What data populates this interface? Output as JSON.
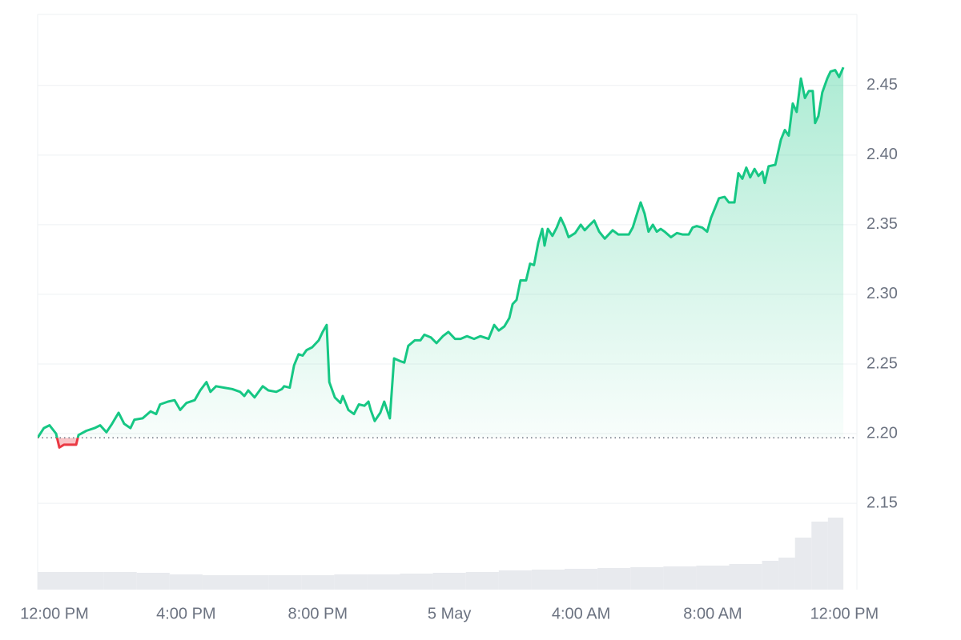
{
  "chart_data": {
    "type": "line",
    "x": [
      -0.51,
      -0.32,
      -0.15,
      0.05,
      0.15,
      0.29,
      0.49,
      0.66,
      0.73,
      0.97,
      1.22,
      1.39,
      1.58,
      1.75,
      1.95,
      2.12,
      2.31,
      2.43,
      2.68,
      2.92,
      3.09,
      3.21,
      3.45,
      3.65,
      3.82,
      4.01,
      4.26,
      4.43,
      4.62,
      4.74,
      4.91,
      5.16,
      5.4,
      5.64,
      5.77,
      5.89,
      6.08,
      6.33,
      6.5,
      6.74,
      6.91,
      6.98,
      7.15,
      7.28,
      7.42,
      7.54,
      7.66,
      7.83,
      8.03,
      8.15,
      8.27,
      8.35,
      8.52,
      8.69,
      8.76,
      8.93,
      9.1,
      9.25,
      9.42,
      9.54,
      9.61,
      9.73,
      9.9,
      10.02,
      10.19,
      10.32,
      10.51,
      10.63,
      10.75,
      10.95,
      11.12,
      11.24,
      11.44,
      11.61,
      11.8,
      11.97,
      12.17,
      12.34,
      12.53,
      12.75,
      12.94,
      13.19,
      13.36,
      13.5,
      13.67,
      13.82,
      13.92,
      14.04,
      14.16,
      14.33,
      14.45,
      14.57,
      14.7,
      14.82,
      14.89,
      14.99,
      15.13,
      15.26,
      15.38,
      15.5,
      15.62,
      15.82,
      15.99,
      16.11,
      16.23,
      16.4,
      16.55,
      16.72,
      16.96,
      17.13,
      17.45,
      17.57,
      17.69,
      17.81,
      17.93,
      18.05,
      18.18,
      18.3,
      18.42,
      18.54,
      18.73,
      18.91,
      19.08,
      19.27,
      19.39,
      19.51,
      19.68,
      19.83,
      19.95,
      20.07,
      20.19,
      20.36,
      20.49,
      20.66,
      20.78,
      20.9,
      21.02,
      21.14,
      21.27,
      21.39,
      21.51,
      21.58,
      21.7,
      21.9,
      22.07,
      22.19,
      22.31,
      22.43,
      22.55,
      22.68,
      22.8,
      22.92,
      23.04,
      23.11,
      23.21,
      23.33,
      23.48,
      23.58,
      23.72,
      23.84,
      23.97
    ],
    "series": [
      {
        "color": "#16c784",
        "below_color": "#ea3943",
        "values": [
          2.197,
          2.204,
          2.206,
          2.2,
          2.19,
          2.192,
          2.192,
          2.192,
          2.199,
          2.202,
          2.204,
          2.206,
          2.201,
          2.207,
          2.215,
          2.207,
          2.204,
          2.21,
          2.211,
          2.216,
          2.214,
          2.221,
          2.223,
          2.224,
          2.217,
          2.222,
          2.224,
          2.231,
          2.237,
          2.23,
          2.234,
          2.233,
          2.232,
          2.23,
          2.227,
          2.231,
          2.226,
          2.234,
          2.231,
          2.23,
          2.232,
          2.234,
          2.233,
          2.249,
          2.257,
          2.256,
          2.26,
          2.262,
          2.267,
          2.273,
          2.278,
          2.237,
          2.226,
          2.222,
          2.227,
          2.217,
          2.214,
          2.221,
          2.22,
          2.223,
          2.217,
          2.209,
          2.215,
          2.223,
          2.211,
          2.254,
          2.252,
          2.251,
          2.263,
          2.267,
          2.267,
          2.271,
          2.269,
          2.265,
          2.27,
          2.273,
          2.268,
          2.268,
          2.27,
          2.268,
          2.27,
          2.268,
          2.278,
          2.274,
          2.277,
          2.283,
          2.293,
          2.296,
          2.31,
          2.31,
          2.322,
          2.321,
          2.337,
          2.347,
          2.335,
          2.347,
          2.342,
          2.348,
          2.355,
          2.349,
          2.341,
          2.344,
          2.35,
          2.346,
          2.349,
          2.353,
          2.345,
          2.34,
          2.346,
          2.343,
          2.343,
          2.348,
          2.357,
          2.366,
          2.358,
          2.345,
          2.35,
          2.345,
          2.347,
          2.345,
          2.341,
          2.344,
          2.343,
          2.343,
          2.348,
          2.349,
          2.348,
          2.345,
          2.355,
          2.362,
          2.369,
          2.37,
          2.366,
          2.366,
          2.387,
          2.383,
          2.391,
          2.384,
          2.39,
          2.385,
          2.388,
          2.38,
          2.392,
          2.393,
          2.411,
          2.418,
          2.414,
          2.437,
          2.431,
          2.455,
          2.441,
          2.446,
          2.446,
          2.423,
          2.428,
          2.445,
          2.455,
          2.46,
          2.461,
          2.456,
          2.463
        ]
      }
    ],
    "reference_value": 2.197,
    "xlim": [
      -0.51,
      24.38
    ],
    "xticks": [
      {
        "value": 0,
        "label": "12:00 PM"
      },
      {
        "value": 4,
        "label": "4:00 PM"
      },
      {
        "value": 8,
        "label": "8:00 PM"
      },
      {
        "value": 12,
        "label": "5 May"
      },
      {
        "value": 16,
        "label": "4:00 AM"
      },
      {
        "value": 20,
        "label": "8:00 AM"
      },
      {
        "value": 24,
        "label": "12:00 PM"
      }
    ],
    "ylim": [
      2.088,
      2.501
    ],
    "yticks": [
      2.15,
      {
        "value": 2.2,
        "label": "2.20"
      },
      2.25,
      {
        "value": 2.3,
        "label": "2.30"
      },
      2.35,
      {
        "value": 2.4,
        "label": "2.40"
      },
      2.45
    ],
    "grid": true,
    "volume": {
      "color": "#e8eaee",
      "ylim": [
        0,
        100
      ],
      "bins": [
        -0.51,
        0.5,
        1.5,
        2.5,
        3.5,
        4.5,
        5.5,
        6.5,
        7.5,
        8.5,
        9.5,
        10.5,
        11.5,
        12.5,
        13.5,
        14.5,
        15.5,
        16.5,
        17.5,
        18.5,
        19.5,
        20.5,
        21.5,
        22,
        22.5,
        23,
        23.5,
        23.97
      ],
      "values": [
        22,
        22,
        22,
        21,
        19,
        18,
        18,
        18,
        18,
        19,
        19,
        20,
        21,
        22,
        24,
        25,
        26,
        27,
        28,
        29,
        30,
        32,
        36,
        40,
        65,
        85,
        90
      ]
    }
  }
}
